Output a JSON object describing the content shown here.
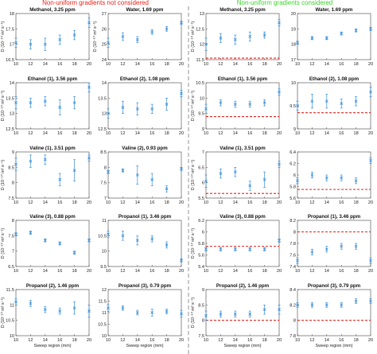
{
  "figure": {
    "left_header": "Non-uniform gradients not considered",
    "right_header": "Non-uniform gradients considered",
    "left_header_color": "#e8231c",
    "right_header_color": "#3ecf2e",
    "marker_color": "#3b8fd9",
    "reference_line_color": "#e8231c",
    "divider_color": "#888888"
  },
  "chart_data": [
    {
      "type": "scatter",
      "title": "Methanol, 3.25 ppm",
      "ylabel": "D (10⁻¹⁰ m² s⁻¹)",
      "xlabel": "",
      "ylim": [
        16.5,
        18
      ],
      "yticks": [
        16.5,
        17,
        17.5,
        18
      ],
      "xlim": [
        10,
        20
      ],
      "xticks": [
        10,
        12,
        14,
        16,
        18,
        20
      ],
      "points": [
        {
          "x": 10,
          "y": 17.05,
          "err": 0.15
        },
        {
          "x": 12,
          "y": 17.0,
          "err": 0.15
        },
        {
          "x": 14,
          "y": 17.0,
          "err": 0.2
        },
        {
          "x": 16,
          "y": 17.15,
          "err": 0.15
        },
        {
          "x": 18,
          "y": 17.3,
          "err": 0.15
        },
        {
          "x": 20,
          "y": 17.7,
          "err": 0.15
        }
      ]
    },
    {
      "type": "scatter",
      "title": "Water, 1.69 ppm",
      "ylabel": "D (10⁻¹⁰ m² s⁻¹)",
      "xlabel": "",
      "ylim": [
        24,
        27
      ],
      "yticks": [
        24,
        25,
        26,
        27
      ],
      "xlim": [
        10,
        20
      ],
      "xticks": [
        10,
        12,
        14,
        16,
        18,
        20
      ],
      "points": [
        {
          "x": 10,
          "y": 25.1,
          "err": 0.3
        },
        {
          "x": 12,
          "y": 25.5,
          "err": 0.25
        },
        {
          "x": 14,
          "y": 25.3,
          "err": 0.2
        },
        {
          "x": 16,
          "y": 25.8,
          "err": 0.15
        },
        {
          "x": 18,
          "y": 26.0,
          "err": 0.15
        },
        {
          "x": 20,
          "y": 26.4,
          "err": 0.1
        }
      ]
    },
    {
      "type": "scatter",
      "title": "Methanol, 3.25 ppm",
      "ylabel": "D (10⁻¹⁰ m² s⁻¹)",
      "xlabel": "",
      "ylim": [
        11.5,
        13
      ],
      "yticks": [
        11.5,
        12,
        12.5,
        13
      ],
      "xlim": [
        10,
        20
      ],
      "xticks": [
        10,
        12,
        14,
        16,
        18,
        20
      ],
      "reference": 11.55,
      "points": [
        {
          "x": 10,
          "y": 12.0,
          "err": 0.2
        },
        {
          "x": 12,
          "y": 12.2,
          "err": 0.15
        },
        {
          "x": 14,
          "y": 12.15,
          "err": 0.15
        },
        {
          "x": 16,
          "y": 12.25,
          "err": 0.15
        },
        {
          "x": 18,
          "y": 12.3,
          "err": 0.1
        },
        {
          "x": 20,
          "y": 12.7,
          "err": 0.1
        }
      ]
    },
    {
      "type": "scatter",
      "title": "Water, 1.69 ppm",
      "ylabel": "",
      "xlabel": "",
      "ylim": [
        17,
        20
      ],
      "yticks": [
        17,
        18,
        19,
        20
      ],
      "xlim": [
        10,
        20
      ],
      "xticks": [
        10,
        12,
        14,
        16,
        18,
        20
      ],
      "points": [
        {
          "x": 10,
          "y": 18.1,
          "err": 0.1
        },
        {
          "x": 12,
          "y": 18.4,
          "err": 0.1
        },
        {
          "x": 14,
          "y": 18.4,
          "err": 0.1
        },
        {
          "x": 16,
          "y": 18.7,
          "err": 0.1
        },
        {
          "x": 18,
          "y": 18.9,
          "err": 0.1
        },
        {
          "x": 20,
          "y": 19.0,
          "err": 0.1
        }
      ]
    },
    {
      "type": "scatter",
      "title": "Ethanol (1), 3.56 ppm",
      "ylabel": "D (10⁻¹⁰ m² s⁻¹)",
      "xlabel": "",
      "ylim": [
        12.5,
        14
      ],
      "yticks": [
        12.5,
        13,
        13.5,
        14
      ],
      "xlim": [
        10,
        20
      ],
      "xticks": [
        10,
        12,
        14,
        16,
        18,
        20
      ],
      "points": [
        {
          "x": 10,
          "y": 13.35,
          "err": 0.2
        },
        {
          "x": 12,
          "y": 13.35,
          "err": 0.15
        },
        {
          "x": 14,
          "y": 13.4,
          "err": 0.15
        },
        {
          "x": 16,
          "y": 13.2,
          "err": 0.25
        },
        {
          "x": 18,
          "y": 13.35,
          "err": 0.2
        },
        {
          "x": 20,
          "y": 13.85,
          "err": 0.15
        }
      ]
    },
    {
      "type": "scatter",
      "title": "Ethanol (2), 1.08 ppm",
      "ylabel": "",
      "xlabel": "",
      "ylim": [
        12.5,
        14
      ],
      "yticks": [
        12.5,
        13,
        13.5,
        14
      ],
      "xlim": [
        10,
        20
      ],
      "xticks": [
        10,
        12,
        14,
        16,
        18,
        20
      ],
      "points": [
        {
          "x": 10,
          "y": 13.0,
          "err": 0.15
        },
        {
          "x": 12,
          "y": 13.2,
          "err": 0.2
        },
        {
          "x": 14,
          "y": 13.15,
          "err": 0.2
        },
        {
          "x": 16,
          "y": 13.15,
          "err": 0.15
        },
        {
          "x": 18,
          "y": 13.3,
          "err": 0.2
        },
        {
          "x": 20,
          "y": 13.65,
          "err": 0.1
        }
      ]
    },
    {
      "type": "scatter",
      "title": "Ethanol (1), 3.56 ppm",
      "ylabel": "D (10⁻¹⁰ m² s⁻¹)",
      "xlabel": "",
      "ylim": [
        9,
        10.5
      ],
      "yticks": [
        9,
        9.5,
        10,
        10.5
      ],
      "xlim": [
        10,
        20
      ],
      "xticks": [
        10,
        12,
        14,
        16,
        18,
        20
      ],
      "reference": 9.4,
      "points": [
        {
          "x": 10,
          "y": 9.65,
          "err": 0.15
        },
        {
          "x": 12,
          "y": 9.85,
          "err": 0.1
        },
        {
          "x": 14,
          "y": 9.8,
          "err": 0.1
        },
        {
          "x": 16,
          "y": 9.8,
          "err": 0.1
        },
        {
          "x": 18,
          "y": 9.85,
          "err": 0.1
        },
        {
          "x": 20,
          "y": 10.2,
          "err": 0.1
        }
      ]
    },
    {
      "type": "scatter",
      "title": "Ethanol (2), 1.08 ppm",
      "ylabel": "",
      "xlabel": "",
      "ylim": [
        9,
        10
      ],
      "yticks": [
        9,
        9.5,
        10
      ],
      "xlim": [
        10,
        20
      ],
      "xticks": [
        10,
        12,
        14,
        16,
        18,
        20
      ],
      "reference": 9.35,
      "points": [
        {
          "x": 10,
          "y": 9.5,
          "err": 0.1
        },
        {
          "x": 12,
          "y": 9.6,
          "err": 0.15
        },
        {
          "x": 14,
          "y": 9.6,
          "err": 0.15
        },
        {
          "x": 16,
          "y": 9.55,
          "err": 0.1
        },
        {
          "x": 18,
          "y": 9.6,
          "err": 0.1
        },
        {
          "x": 20,
          "y": 9.8,
          "err": 0.1
        }
      ]
    },
    {
      "type": "scatter",
      "title": "Valine (1), 3.51 ppm",
      "ylabel": "D (10⁻¹⁰ m² s⁻¹)",
      "xlabel": "",
      "ylim": [
        7.5,
        9
      ],
      "yticks": [
        7.5,
        8,
        8.5,
        9
      ],
      "xlim": [
        10,
        20
      ],
      "xticks": [
        10,
        12,
        14,
        16,
        18,
        20
      ],
      "points": [
        {
          "x": 10,
          "y": 8.6,
          "err": 0.2
        },
        {
          "x": 12,
          "y": 8.7,
          "err": 0.2
        },
        {
          "x": 14,
          "y": 8.75,
          "err": 0.15
        },
        {
          "x": 16,
          "y": 8.1,
          "err": 0.2
        },
        {
          "x": 18,
          "y": 8.4,
          "err": 0.35
        },
        {
          "x": 20,
          "y": 8.8,
          "err": 0.1
        }
      ]
    },
    {
      "type": "scatter",
      "title": "Valine (2), 0.93 ppm",
      "ylabel": "",
      "xlabel": "",
      "ylim": [
        7,
        8.5
      ],
      "yticks": [
        7,
        7.5,
        8,
        8.5
      ],
      "xlim": [
        10,
        20
      ],
      "xticks": [
        10,
        12,
        14,
        16,
        18,
        20
      ],
      "points": [
        {
          "x": 10,
          "y": 7.85,
          "err": 0.05
        },
        {
          "x": 12,
          "y": 7.9,
          "err": 0.05
        },
        {
          "x": 14,
          "y": 7.75,
          "err": 0.3
        },
        {
          "x": 16,
          "y": 7.6,
          "err": 0.2
        },
        {
          "x": 18,
          "y": 7.3,
          "err": 0.1
        },
        {
          "x": 20,
          "y": 7.95,
          "err": 0.05
        }
      ]
    },
    {
      "type": "scatter",
      "title": "Valine (1), 3.51 ppm",
      "ylabel": "D (10⁻¹⁰ m² s⁻¹)",
      "xlabel": "",
      "ylim": [
        5.5,
        7
      ],
      "yticks": [
        5.5,
        6,
        6.5,
        7
      ],
      "xlim": [
        10,
        20
      ],
      "xticks": [
        10,
        12,
        14,
        16,
        18,
        20
      ],
      "reference": 5.65,
      "points": [
        {
          "x": 10,
          "y": 6.05,
          "err": 0.2
        },
        {
          "x": 12,
          "y": 6.3,
          "err": 0.15
        },
        {
          "x": 14,
          "y": 6.35,
          "err": 0.15
        },
        {
          "x": 16,
          "y": 5.9,
          "err": 0.15
        },
        {
          "x": 18,
          "y": 6.1,
          "err": 0.25
        },
        {
          "x": 20,
          "y": 6.6,
          "err": 0.1
        }
      ]
    },
    {
      "type": "scatter",
      "title": "",
      "ylabel": "",
      "xlabel": "",
      "ylim": [
        5.6,
        6.4
      ],
      "yticks": [
        5.6,
        5.8,
        6,
        6.2,
        6.4
      ],
      "xlim": [
        10,
        20
      ],
      "xticks": [
        10,
        12,
        14,
        16,
        18,
        20
      ],
      "reference": 5.75,
      "points": [
        {
          "x": 10,
          "y": 5.9,
          "err": 0.05
        },
        {
          "x": 12,
          "y": 6.0,
          "err": 0.05
        },
        {
          "x": 14,
          "y": 5.95,
          "err": 0.05
        },
        {
          "x": 16,
          "y": 5.95,
          "err": 0.05
        },
        {
          "x": 18,
          "y": 5.9,
          "err": 0.05
        },
        {
          "x": 20,
          "y": 6.25,
          "err": 0.05
        }
      ]
    },
    {
      "type": "scatter",
      "title": "Valine (3), 0.88 ppm",
      "ylabel": "D (10⁻¹⁰ m² s⁻¹)",
      "xlabel": "",
      "ylim": [
        6.5,
        8
      ],
      "yticks": [
        6.5,
        7,
        7.5,
        8
      ],
      "xlim": [
        10,
        20
      ],
      "xticks": [
        10,
        12,
        14,
        16,
        18,
        20
      ],
      "points": [
        {
          "x": 10,
          "y": 7.55,
          "err": 0.05
        },
        {
          "x": 12,
          "y": 7.6,
          "err": 0.05
        },
        {
          "x": 14,
          "y": 7.35,
          "err": 0.05
        },
        {
          "x": 16,
          "y": 7.25,
          "err": 0.05
        },
        {
          "x": 18,
          "y": 6.95,
          "err": 0.05
        },
        {
          "x": 20,
          "y": 7.35,
          "err": 0.05
        }
      ]
    },
    {
      "type": "scatter",
      "title": "Propanol (1), 3.46 ppm",
      "ylabel": "",
      "xlabel": "",
      "ylim": [
        9.5,
        11
      ],
      "yticks": [
        9.5,
        10,
        10.5,
        11
      ],
      "xlim": [
        10,
        20
      ],
      "xticks": [
        10,
        12,
        14,
        16,
        18,
        20
      ],
      "points": [
        {
          "x": 10,
          "y": 10.55,
          "err": 0.1
        },
        {
          "x": 12,
          "y": 10.5,
          "err": 0.15
        },
        {
          "x": 14,
          "y": 10.35,
          "err": 0.15
        },
        {
          "x": 16,
          "y": 10.4,
          "err": 0.1
        },
        {
          "x": 18,
          "y": 10.2,
          "err": 0.1
        },
        {
          "x": 20,
          "y": 9.7,
          "err": 0.05
        }
      ]
    },
    {
      "type": "scatter",
      "title": "Valine (3), 0.88 ppm",
      "ylabel": "D (10⁻¹⁰ m² s⁻¹)",
      "xlabel": "",
      "ylim": [
        5.4,
        6.2
      ],
      "yticks": [
        5.4,
        5.6,
        5.8,
        6,
        6.2
      ],
      "xlim": [
        10,
        20
      ],
      "xticks": [
        10,
        12,
        14,
        16,
        18,
        20
      ],
      "reference": 5.75,
      "points": [
        {
          "x": 10,
          "y": 5.7,
          "err": 0.03
        },
        {
          "x": 12,
          "y": 5.7,
          "err": 0.03
        },
        {
          "x": 14,
          "y": 5.7,
          "err": 0.03
        },
        {
          "x": 16,
          "y": 5.7,
          "err": 0.03
        },
        {
          "x": 18,
          "y": 5.7,
          "err": 0.03
        },
        {
          "x": 20,
          "y": 5.85,
          "err": 0.03
        }
      ]
    },
    {
      "type": "scatter",
      "title": "Propanol (1), 3.46 ppm",
      "ylabel": "",
      "xlabel": "",
      "ylim": [
        7.4,
        8.2
      ],
      "yticks": [
        7.4,
        7.6,
        7.8,
        8,
        8.2
      ],
      "xlim": [
        10,
        20
      ],
      "xticks": [
        10,
        12,
        14,
        16,
        18,
        20
      ],
      "reference": 8.0,
      "points": [
        {
          "x": 10,
          "y": 7.5,
          "err": 0.05
        },
        {
          "x": 12,
          "y": 7.65,
          "err": 0.05
        },
        {
          "x": 14,
          "y": 7.7,
          "err": 0.05
        },
        {
          "x": 16,
          "y": 7.75,
          "err": 0.05
        },
        {
          "x": 18,
          "y": 7.75,
          "err": 0.05
        },
        {
          "x": 20,
          "y": 7.5,
          "err": 0.05
        }
      ]
    },
    {
      "type": "scatter",
      "title": "Propanol (2), 1.46 ppm",
      "ylabel": "D (10⁻¹⁰ m² s⁻¹)",
      "xlabel": "Sweep region (mm)",
      "ylim": [
        10,
        11.5
      ],
      "yticks": [
        10,
        10.5,
        11,
        11.5
      ],
      "xlim": [
        10,
        20
      ],
      "xticks": [
        10,
        12,
        14,
        16,
        18,
        20
      ],
      "points": [
        {
          "x": 10,
          "y": 11.1,
          "err": 0.1
        },
        {
          "x": 12,
          "y": 11.05,
          "err": 0.1
        },
        {
          "x": 14,
          "y": 10.85,
          "err": 0.1
        },
        {
          "x": 16,
          "y": 10.8,
          "err": 0.1
        },
        {
          "x": 18,
          "y": 10.9,
          "err": 0.2
        },
        {
          "x": 20,
          "y": 10.8,
          "err": 0.2
        }
      ]
    },
    {
      "type": "scatter",
      "title": "Propanol (3), 0.79 ppm",
      "ylabel": "",
      "xlabel": "Sweep region (mm)",
      "ylim": [
        10,
        12
      ],
      "yticks": [
        10,
        10.5,
        11,
        11.5,
        12
      ],
      "xlim": [
        10,
        20
      ],
      "xticks": [
        10,
        12,
        14,
        16,
        18,
        20
      ],
      "points": [
        {
          "x": 10,
          "y": 11.2,
          "err": 0.15
        },
        {
          "x": 12,
          "y": 11.2,
          "err": 0.1
        },
        {
          "x": 14,
          "y": 11.0,
          "err": 0.1
        },
        {
          "x": 16,
          "y": 11.0,
          "err": 0.15
        },
        {
          "x": 18,
          "y": 11.05,
          "err": 0.1
        },
        {
          "x": 20,
          "y": 10.95,
          "err": 0.15
        }
      ]
    },
    {
      "type": "scatter",
      "title": "Propanol (2), 1.46 ppm",
      "ylabel": "D (10⁻¹⁰ m² s⁻¹)",
      "xlabel": "Sweep region (mm)",
      "ylim": [
        7.5,
        9
      ],
      "yticks": [
        7.5,
        8,
        8.5,
        9
      ],
      "xlim": [
        10,
        20
      ],
      "xticks": [
        10,
        12,
        14,
        16,
        18,
        20
      ],
      "reference": 8.0,
      "points": [
        {
          "x": 10,
          "y": 8.15,
          "err": 0.15
        },
        {
          "x": 12,
          "y": 8.2,
          "err": 0.1
        },
        {
          "x": 14,
          "y": 8.2,
          "err": 0.1
        },
        {
          "x": 16,
          "y": 8.2,
          "err": 0.1
        },
        {
          "x": 18,
          "y": 8.35,
          "err": 0.15
        },
        {
          "x": 20,
          "y": 8.35,
          "err": 0.15
        }
      ]
    },
    {
      "type": "scatter",
      "title": "Propanol (3), 0.79 ppm",
      "ylabel": "",
      "xlabel": "Sweep region (mm)",
      "ylim": [
        7.8,
        8.4
      ],
      "yticks": [
        7.8,
        8,
        8.2,
        8.4
      ],
      "xlim": [
        10,
        20
      ],
      "xticks": [
        10,
        12,
        14,
        16,
        18,
        20
      ],
      "reference": 8.0,
      "points": [
        {
          "x": 10,
          "y": 8.2,
          "err": 0.03
        },
        {
          "x": 12,
          "y": 8.2,
          "err": 0.03
        },
        {
          "x": 14,
          "y": 8.2,
          "err": 0.03
        },
        {
          "x": 16,
          "y": 8.2,
          "err": 0.03
        },
        {
          "x": 18,
          "y": 8.25,
          "err": 0.03
        },
        {
          "x": 20,
          "y": 8.25,
          "err": 0.03
        }
      ]
    }
  ]
}
